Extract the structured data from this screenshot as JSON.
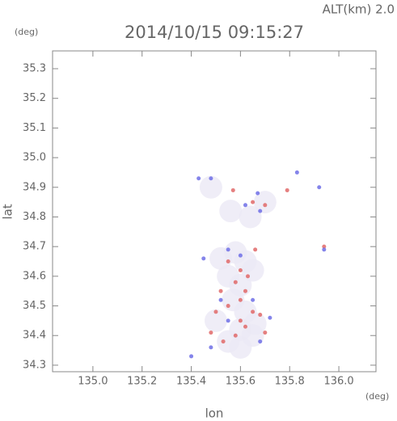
{
  "chart_data": {
    "type": "scatter",
    "title": "2014/10/15 09:15:27",
    "subtitle": "ALT(km) 2.0",
    "xlabel": "lon",
    "xunit": "(deg)",
    "ylabel": "lat",
    "yunit": "(deg)",
    "xlim": [
      134.836,
      136.151
    ],
    "ylim": [
      34.278,
      35.36
    ],
    "xticks": [
      {
        "value": 135,
        "label": "135.0"
      },
      135.2,
      135.4,
      135.6,
      135.8,
      {
        "value": 136,
        "label": "136.0"
      }
    ],
    "yticks": [
      34.3,
      34.4,
      34.5,
      34.6,
      34.7,
      34.8,
      34.9,
      {
        "value": 35,
        "label": "35.0"
      },
      35.1,
      35.2,
      35.3
    ],
    "series": [
      {
        "color": "#ebe9f5",
        "x": [
          135.52,
          135.58,
          135.62,
          135.55,
          135.6,
          135.65,
          135.57,
          135.62,
          135.5,
          135.6,
          135.66,
          135.55,
          135.6,
          135.65,
          135.7,
          135.48,
          135.56,
          135.64
        ],
        "y": [
          34.66,
          34.68,
          34.65,
          34.6,
          34.57,
          34.62,
          34.52,
          34.48,
          34.45,
          34.42,
          34.44,
          34.38,
          34.36,
          34.4,
          34.85,
          34.9,
          34.82,
          34.8
        ]
      },
      {
        "color": "#e06868",
        "x": [
          135.57,
          135.65,
          135.7,
          135.79,
          135.94,
          135.55,
          135.6,
          135.58,
          135.62,
          135.6,
          135.55,
          135.5,
          135.65,
          135.68,
          135.62,
          135.58,
          135.48,
          135.53,
          135.6,
          135.63,
          135.66,
          135.52,
          135.7
        ],
        "y": [
          34.89,
          34.85,
          34.84,
          34.89,
          34.7,
          34.65,
          34.62,
          34.58,
          34.55,
          34.52,
          34.5,
          34.48,
          34.48,
          34.47,
          34.43,
          34.4,
          34.41,
          34.38,
          34.45,
          34.6,
          34.69,
          34.55,
          34.41
        ]
      },
      {
        "color": "#6f6fe6",
        "x": [
          135.43,
          135.48,
          135.67,
          135.92,
          135.83,
          135.94,
          135.62,
          135.68,
          135.55,
          135.45,
          135.6,
          135.65,
          135.55,
          135.48,
          135.68,
          135.52,
          135.72,
          135.4
        ],
        "y": [
          34.93,
          34.93,
          34.88,
          34.9,
          34.95,
          34.69,
          34.84,
          34.82,
          34.69,
          34.66,
          34.67,
          34.52,
          34.45,
          34.36,
          34.38,
          34.52,
          34.46,
          34.33
        ]
      }
    ]
  }
}
